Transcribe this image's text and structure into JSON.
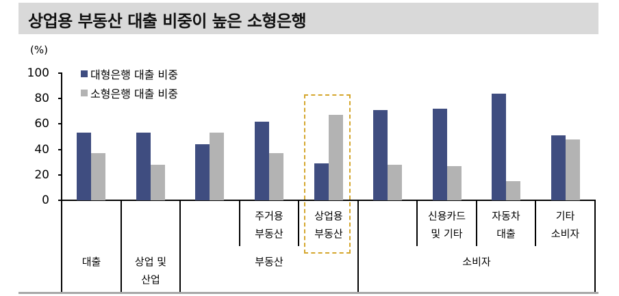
{
  "header": {
    "title": "상업용 부동산 대출 비중이 높은 소형은행"
  },
  "colors": {
    "large_bank": "#3f4d80",
    "small_bank": "#b3b3b3",
    "highlight": "#d4a52b",
    "banner": "#d9d9d9"
  },
  "chart_data": {
    "type": "bar",
    "title": "상업용 부동산 대출 비중이 높은 소형은행",
    "ylabel": "(%)",
    "xlabel": "",
    "ylim": [
      0,
      100
    ],
    "yticks": [
      "0",
      "20",
      "40",
      "60",
      "80",
      "100"
    ],
    "grid": false,
    "legend_position": "top-left",
    "categories": [
      "대출",
      "상업 및 산업",
      "부동산",
      "주거용 부동산",
      "상업용 부동산",
      "소비자",
      "신용카드 및 기타",
      "자동차 대출",
      "기타 소비자"
    ],
    "series": [
      {
        "name": "대형은행 대출 비중",
        "color": "#3f4d80",
        "values": [
          53,
          53,
          44,
          62,
          29,
          71,
          72,
          84,
          51
        ]
      },
      {
        "name": "소형은행 대출 비중",
        "color": "#b3b3b3",
        "values": [
          37,
          28,
          53,
          37,
          67,
          28,
          27,
          15,
          48
        ]
      }
    ],
    "annotations": [
      "상업용 부동산 category highlighted with dashed gold box"
    ],
    "category_axis": {
      "level1": [
        {
          "label": "주거용\n부동산",
          "index": 3
        },
        {
          "label": "상업용\n부동산",
          "index": 4
        },
        {
          "label": "신용카드\n및 기타",
          "index": 6
        },
        {
          "label": "자동차\n대출",
          "index": 7
        },
        {
          "label": "기타\n소비자",
          "index": 8
        }
      ],
      "level2": [
        {
          "label": "대출",
          "span": [
            0,
            0
          ]
        },
        {
          "label": "상업 및\n산업",
          "span": [
            1,
            1
          ]
        },
        {
          "label": "부동산",
          "span": [
            2,
            4
          ]
        },
        {
          "label": "소비자",
          "span": [
            5,
            8
          ]
        }
      ]
    }
  },
  "legend": [
    {
      "label": "대형은행 대출 비중"
    },
    {
      "label": "소형은행 대출 비중"
    }
  ],
  "labels": {
    "unit": "(%)",
    "l1_0": "주거용\n부동산",
    "l1_1": "상업용\n부동산",
    "l1_2": "신용카드\n및 기타",
    "l1_3": "자동차\n대출",
    "l1_4": "기타\n소비자",
    "l2_0": "대출",
    "l2_1": "상업 및\n산업",
    "l2_2": "부동산",
    "l2_3": "소비자"
  }
}
